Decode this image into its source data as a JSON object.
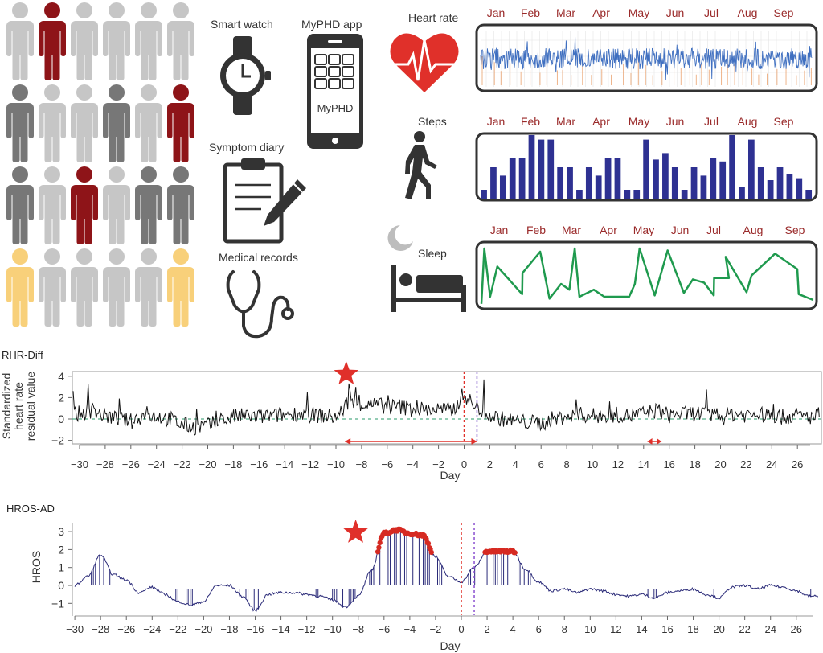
{
  "figure": {
    "cohort_icon": "person-icon",
    "cohort_grid": [
      [
        "light",
        "red",
        "light",
        "light",
        "light",
        "light"
      ],
      [
        "dark",
        "light",
        "light",
        "dark",
        "light",
        "red"
      ],
      [
        "dark",
        "light",
        "red",
        "light",
        "dark",
        "dark"
      ],
      [
        "yellow",
        "light",
        "light",
        "light",
        "light",
        "yellow"
      ]
    ],
    "colors": {
      "light": "#c6c6c6",
      "dark": "#777777",
      "red": "#8e1418",
      "yellow": "#f8d07a",
      "accent_red": "#e0302a",
      "bar_blue": "#2e3192",
      "sleep_green": "#1f9a4e",
      "hr_blue": "#3f6fc0",
      "hr_orange": "#e8955a",
      "hros_navy": "#2a2a78"
    },
    "devices": {
      "smart_watch": "Smart watch",
      "app": "MyPHD app",
      "app_screen_text": "MyPHD",
      "diary": "Symptom diary",
      "records": "Medical records"
    },
    "panels": {
      "heart_rate": "Heart rate",
      "steps": "Steps",
      "sleep": "Sleep"
    }
  },
  "chart_data": [
    {
      "id": "heart_rate",
      "type": "line",
      "months": [
        "Jan",
        "Feb",
        "Mar",
        "Apr",
        "May",
        "Jun",
        "Jul",
        "Aug",
        "Sep"
      ],
      "series": [
        {
          "color": "#3f6fc0"
        },
        {
          "color": "#e8955a"
        }
      ]
    },
    {
      "id": "steps",
      "type": "bar",
      "months": [
        "Jan",
        "Feb",
        "Mar",
        "Apr",
        "May",
        "Jun",
        "Jul",
        "Aug",
        "Sep"
      ],
      "values": [
        0.15,
        0.5,
        0.37,
        0.65,
        0.65,
        1,
        0.93,
        0.93,
        0.5,
        0.5,
        0.15,
        0.5,
        0.37,
        0.65,
        0.65,
        0.15,
        0.15,
        0.93,
        0.62,
        0.72,
        0.5,
        0.15,
        0.5,
        0.37,
        0.65,
        0.59,
        1,
        0.2,
        0.93,
        0.5,
        0.3,
        0.5,
        0.4,
        0.33,
        0.15
      ],
      "color": "#2e3192"
    },
    {
      "id": "sleep",
      "type": "line",
      "months": [
        "Jan",
        "Feb",
        "Mar",
        "Apr",
        "May",
        "Jun",
        "Jul",
        "Aug",
        "Sep"
      ],
      "x_month": [
        0.49,
        0.57,
        0.73,
        0.93,
        1.62,
        1.63,
        2.12,
        2.38,
        2.7,
        2.93,
        3.08,
        3.21,
        3.61,
        3.9,
        4.59,
        4.75,
        4.88,
        5.3,
        5.66,
        6.11,
        6.36,
        6.67,
        6.94,
        6.95,
        7.36,
        7.27,
        7.85,
        7.99,
        8.64,
        9.26,
        9.3,
        9.7
      ],
      "y": [
        0.04,
        0.9,
        0.15,
        0.62,
        0.19,
        0.52,
        0.85,
        0.12,
        0.35,
        0.26,
        0.9,
        0.15,
        0.26,
        0.15,
        0.15,
        0.35,
        0.9,
        0.17,
        0.87,
        0.21,
        0.42,
        0.37,
        0.17,
        0.44,
        0.44,
        0.77,
        0.22,
        0.48,
        0.82,
        0.58,
        0.19,
        0.1
      ],
      "xlim": [
        0.4,
        9.75
      ],
      "color": "#1f9a4e"
    },
    {
      "id": "rhr_diff",
      "type": "line",
      "title": "RHR-Diff",
      "ylabel": [
        "Standardized",
        "heart rate",
        "residual value"
      ],
      "xlabel": "Day",
      "xlim": [
        -30.5,
        27.8
      ],
      "ylim": [
        -2.3,
        4.2
      ],
      "yticks": [
        "4",
        "2",
        "0",
        "-2"
      ],
      "xticks": [
        -30,
        -28,
        -26,
        -24,
        -22,
        -20,
        -18,
        -16,
        -14,
        -12,
        -10,
        -8,
        -6,
        -4,
        -2,
        0,
        2,
        4,
        6,
        8,
        10,
        12,
        14,
        16,
        18,
        20,
        22,
        24,
        26
      ],
      "days": [
        -30,
        -29,
        -28,
        -27,
        -26,
        -25,
        -24,
        -23,
        -22,
        -21,
        -20,
        -19,
        -18,
        -17,
        -16,
        -15,
        -14,
        -13,
        -12,
        -11,
        -10,
        -9,
        -8,
        -7,
        -6,
        -5,
        -4,
        -3,
        -2,
        -1,
        0,
        1,
        2,
        3,
        4,
        5,
        6,
        7,
        8,
        9,
        10,
        11,
        12,
        13,
        14,
        15,
        16,
        17,
        18,
        19,
        20,
        21,
        22,
        23,
        24,
        25,
        26,
        27
      ],
      "values": [
        0.5,
        0.8,
        0.3,
        0,
        -0.2,
        0.3,
        0.3,
        0,
        -0.5,
        -0.8,
        -0.6,
        -0.2,
        0.2,
        0.3,
        0.2,
        0.3,
        0.4,
        0.5,
        0.4,
        0.3,
        0.2,
        1.5,
        1.4,
        1.3,
        1.2,
        1.1,
        1.0,
        0.9,
        0.9,
        0.8,
        2.2,
        1.0,
        0.3,
        0,
        -0.2,
        -0.3,
        -0.4,
        0,
        0.2,
        0.4,
        0.3,
        0.2,
        0.4,
        0.3,
        0.5,
        0.8,
        0.4,
        0.5,
        0.5,
        0.4,
        0.2,
        0.5,
        0.4,
        0.4,
        0.3,
        0.2,
        0.3,
        0.2
      ],
      "baseline": 0,
      "markers": {
        "star_day": -9.2,
        "symptom_onset_day": 0,
        "diagnosis_day": 1,
        "alert_span_days": [
          -9.3,
          1
        ],
        "second_span_days": [
          14.3,
          15.4
        ]
      }
    },
    {
      "id": "hros_ad",
      "type": "line",
      "title": "HROS-AD",
      "ylabel": "HROS",
      "xlabel": "Day",
      "xlim": [
        -30.5,
        27.8
      ],
      "ylim": [
        -1.6,
        3.4
      ],
      "yticks": [
        "3",
        "2",
        "1",
        "0",
        "-1"
      ],
      "xticks": [
        -30,
        -28,
        -26,
        -24,
        -22,
        -20,
        -18,
        -16,
        -14,
        -12,
        -10,
        -8,
        -6,
        -4,
        -2,
        0,
        2,
        4,
        6,
        8,
        10,
        12,
        14,
        16,
        18,
        20,
        22,
        24,
        26
      ],
      "days": [
        -30,
        -29,
        -28,
        -27,
        -26,
        -25,
        -24,
        -23,
        -22,
        -21,
        -20,
        -19,
        -18,
        -17,
        -16,
        -15,
        -14,
        -13,
        -12,
        -11,
        -10,
        -9,
        -8,
        -7,
        -6,
        -5,
        -4,
        -3,
        -2,
        -1,
        0,
        1,
        2,
        3,
        4,
        5,
        6,
        7,
        8,
        9,
        10,
        11,
        12,
        13,
        14,
        15,
        16,
        17,
        18,
        19,
        20,
        21,
        22,
        23,
        24,
        25,
        26,
        27
      ],
      "values": [
        0,
        0.5,
        1.7,
        0.6,
        0.3,
        -0.4,
        -0.1,
        -0.5,
        -0.9,
        -1.1,
        -0.9,
        0,
        0,
        -0.6,
        -1.4,
        -0.5,
        -0.4,
        -0.4,
        -0.5,
        -0.6,
        -0.8,
        -1.2,
        -0.6,
        0.8,
        2.9,
        3.1,
        2.9,
        2.8,
        1.6,
        0.5,
        0.2,
        1.0,
        1.9,
        1.9,
        1.9,
        0.9,
        0.2,
        -0.3,
        -0.2,
        -0.4,
        -0.2,
        -0.3,
        -0.5,
        -0.6,
        -0.5,
        -0.7,
        -0.4,
        -0.3,
        -0.2,
        -0.5,
        -0.7,
        -0.1,
        0,
        -0.2,
        0,
        -0.1,
        -0.3,
        -0.6
      ],
      "markers": {
        "star_day": -8.2,
        "symptom_onset_day": 0,
        "diagnosis_day": 1,
        "alarm_threshold": 1.8
      }
    }
  ]
}
